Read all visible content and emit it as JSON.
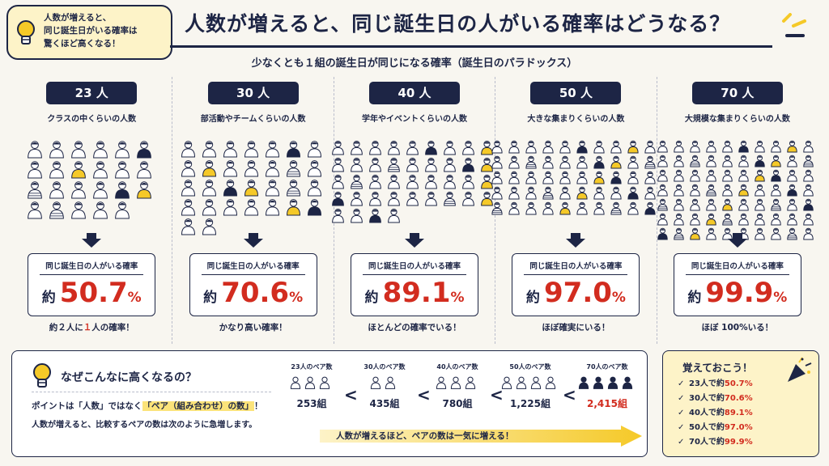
{
  "bubble": {
    "lines": [
      "人数が増えると、",
      "同じ誕生日がいる確率は",
      "驚くほど高くなる！"
    ]
  },
  "title": "人数が増えると、同じ誕生日の人がいる確率はどうなる？",
  "subtitle": "少なくとも１組の誕生日が同じになる確率（誕生日のパラドックス）",
  "groups": [
    {
      "count": "23 人",
      "desc": "クラスの中くらいの人数",
      "prob_label": "同じ誕生日の人がいる確率",
      "approx": "約",
      "value": "50.7",
      "unit": "%",
      "note_parts": [
        "約２人に",
        "１",
        "人の確率！"
      ],
      "people": 23
    },
    {
      "count": "30 人",
      "desc": "部活動やチームくらいの人数",
      "prob_label": "同じ誕生日の人がいる確率",
      "approx": "約",
      "value": "70.6",
      "unit": "%",
      "note_parts": [
        "かなり高い確率！",
        "",
        ""
      ],
      "people": 30
    },
    {
      "count": "40 人",
      "desc": "学年やイベントくらいの人数",
      "prob_label": "同じ誕生日の人がいる確率",
      "approx": "約",
      "value": "89.1",
      "unit": "%",
      "note_parts": [
        "ほとんどの確率でいる！",
        "",
        ""
      ],
      "people": 40
    },
    {
      "count": "50 人",
      "desc": "大きな集まりくらいの人数",
      "prob_label": "同じ誕生日の人がいる確率",
      "approx": "約",
      "value": "97.0",
      "unit": "%",
      "note_parts": [
        "ほぼ確実にいる！",
        "",
        ""
      ],
      "people": 50
    },
    {
      "count": "70 人",
      "desc": "大規模な集まりくらいの人数",
      "prob_label": "同じ誕生日の人がいる確率",
      "approx": "約",
      "value": "99.9",
      "unit": "%",
      "note_parts": [
        "ほぼ 100%いる！",
        "",
        ""
      ],
      "people": 70
    }
  ],
  "why": {
    "title": "なぜこんなに高くなるの？",
    "line1_pre": "ポイントは「人数」ではなく",
    "line1_hl": "「ペア（組み合わせ）の数」",
    "line1_post": "！",
    "line2": "人数が増えると、比較するペアの数は次のように急増します。",
    "pairs": [
      {
        "label": "23人のペア数",
        "count": "253組"
      },
      {
        "label": "30人のペア数",
        "count": "435組"
      },
      {
        "label": "40人のペア数",
        "count": "780組"
      },
      {
        "label": "50人のペア数",
        "count": "1,225組"
      },
      {
        "label": "70人のペア数",
        "count": "2,415組"
      }
    ],
    "lt": "<",
    "arrow_text": "人数が増えるほど、ペアの数は一気に増える！"
  },
  "memo": {
    "title": "覚えておこう！",
    "items": [
      {
        "pre": "23人で約",
        "val": "50.7%"
      },
      {
        "pre": "30人で約",
        "val": "70.6%"
      },
      {
        "pre": "40人で約",
        "val": "89.1%"
      },
      {
        "pre": "50人で約",
        "val": "97.0%"
      },
      {
        "pre": "70人で約",
        "val": "99.9%"
      }
    ],
    "check": "✓"
  },
  "colors": {
    "navy": "#1d2545",
    "red": "#d22c1f",
    "yellow": "#f5c928",
    "cream": "#fdf3c8"
  }
}
